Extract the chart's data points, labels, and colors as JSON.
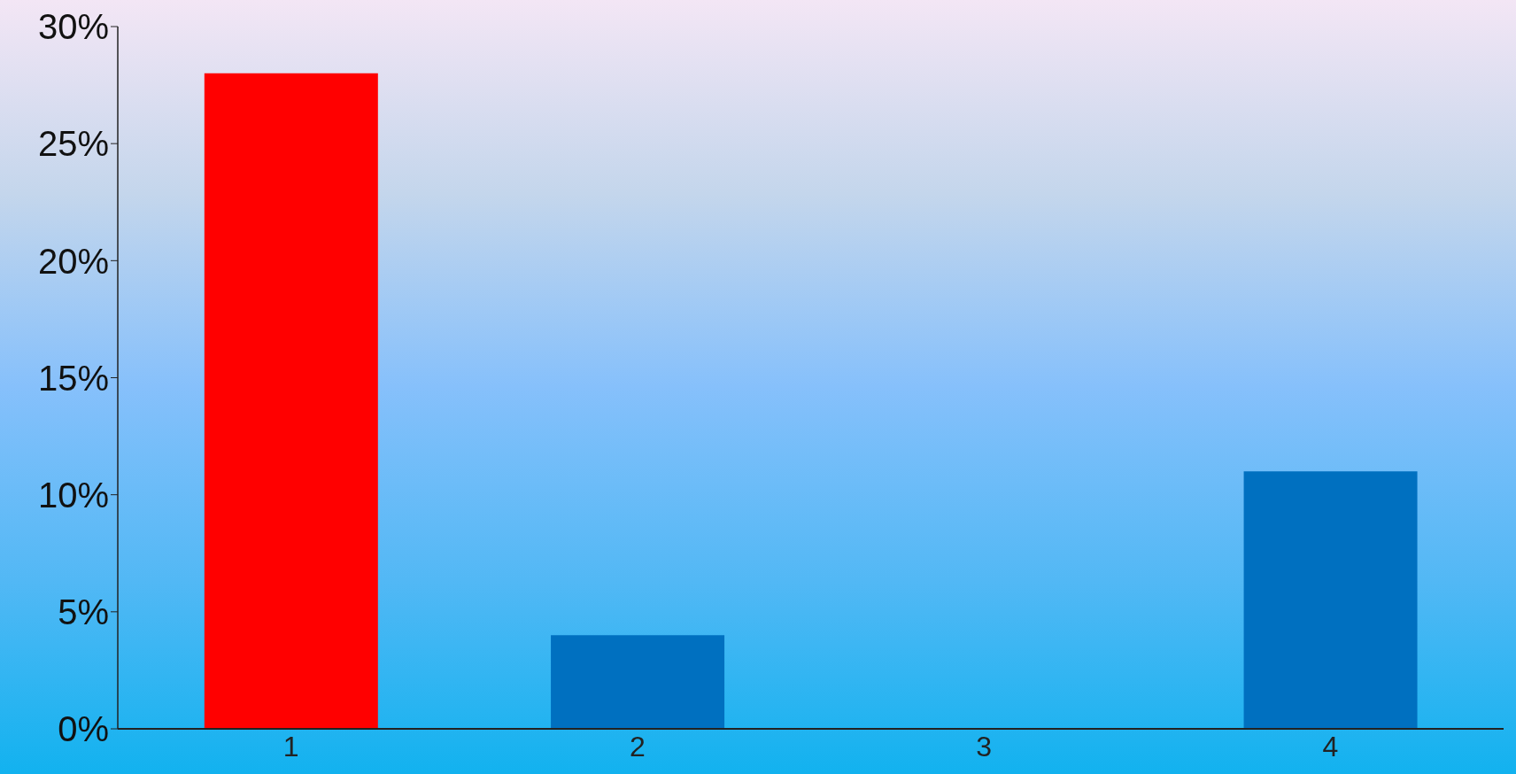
{
  "chart_data": {
    "type": "bar",
    "categories": [
      "1",
      "2",
      "3",
      "4"
    ],
    "values": [
      28,
      4,
      0,
      11
    ],
    "colors": [
      "#ff0000",
      "#0070c0",
      "#0070c0",
      "#0070c0"
    ],
    "ylim": [
      0,
      30
    ],
    "yticks": [
      {
        "value": 0,
        "label": "0%"
      },
      {
        "value": 5,
        "label": "5%"
      },
      {
        "value": 10,
        "label": "10%"
      },
      {
        "value": 15,
        "label": "15%"
      },
      {
        "value": 20,
        "label": "20%"
      },
      {
        "value": 25,
        "label": "25%"
      },
      {
        "value": 30,
        "label": "30%"
      }
    ],
    "grid": false,
    "legend": false
  }
}
